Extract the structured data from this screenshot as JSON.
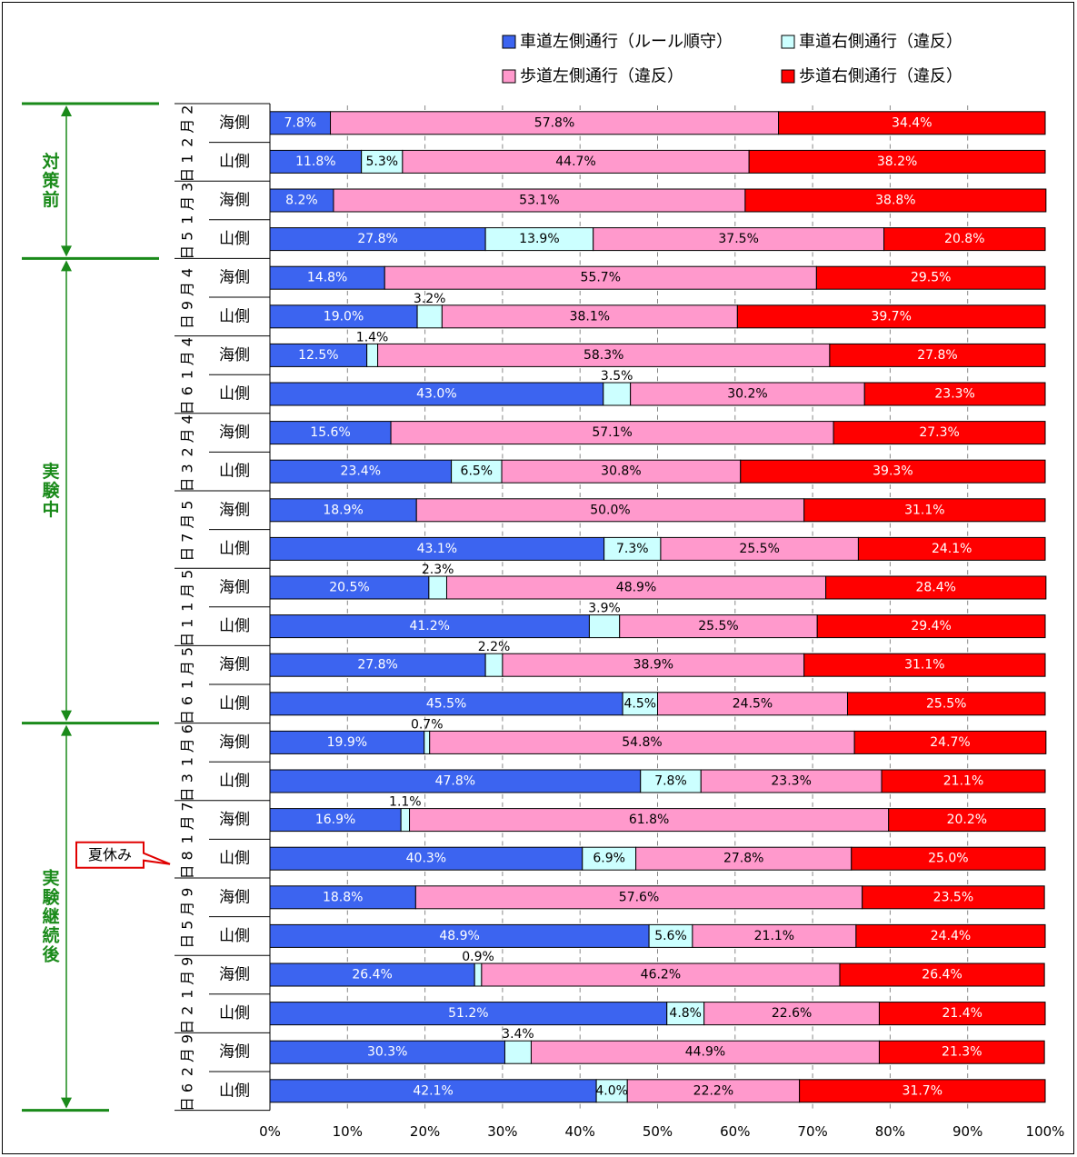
{
  "chart_data": {
    "type": "bar",
    "orientation": "horizontal",
    "stacked": true,
    "xlim": [
      0,
      100
    ],
    "x_ticks": [
      "0%",
      "10%",
      "20%",
      "30%",
      "40%",
      "50%",
      "60%",
      "70%",
      "80%",
      "90%",
      "100%"
    ],
    "grid": true,
    "legend_position": "top-right",
    "series": [
      {
        "name": "車道左側通行（ルール順守）",
        "color": "#3c64f0"
      },
      {
        "name": "車道右側通行（違反）",
        "color": "#ccffff"
      },
      {
        "name": "歩道左側通行（違反）",
        "color": "#ff99cc"
      },
      {
        "name": "歩道右側通行（違反）",
        "color": "#ff0000"
      }
    ],
    "dates": [
      "2月21日",
      "3月15日",
      "4月9日",
      "4月16日",
      "4月23日",
      "5月7日",
      "5月11日",
      "5月16日",
      "6月13日",
      "7月18日",
      "9月5日",
      "9月12日",
      "9月26日"
    ],
    "periods": [
      {
        "label": "対策前",
        "from_date": 0,
        "to_date": 1
      },
      {
        "label": "実験中",
        "from_date": 2,
        "to_date": 7
      },
      {
        "label": "実験継続後",
        "from_date": 8,
        "to_date": 12
      }
    ],
    "callout": {
      "text": "夏休み",
      "date_index": 9
    },
    "rows": [
      {
        "date": 0,
        "side": "海側",
        "values": [
          7.8,
          0,
          57.8,
          34.4
        ],
        "labels": [
          "7.8%",
          "",
          "57.8%",
          "34.4%"
        ]
      },
      {
        "date": 0,
        "side": "山側",
        "values": [
          11.8,
          5.3,
          44.7,
          38.2
        ],
        "labels": [
          "11.8%",
          "5.3%",
          "44.7%",
          "38.2%"
        ]
      },
      {
        "date": 1,
        "side": "海側",
        "values": [
          8.2,
          0,
          53.1,
          38.8
        ],
        "labels": [
          "8.2%",
          "",
          "53.1%",
          "38.8%"
        ]
      },
      {
        "date": 1,
        "side": "山側",
        "values": [
          27.8,
          13.9,
          37.5,
          20.8
        ],
        "labels": [
          "27.8%",
          "13.9%",
          "37.5%",
          "20.8%"
        ]
      },
      {
        "date": 2,
        "side": "海側",
        "values": [
          14.8,
          0,
          55.7,
          29.5
        ],
        "labels": [
          "14.8%",
          "",
          "55.7%",
          "29.5%"
        ]
      },
      {
        "date": 2,
        "side": "山側",
        "values": [
          19.0,
          3.2,
          38.1,
          39.7
        ],
        "labels": [
          "19.0%",
          "3.2%",
          "38.1%",
          "39.7%"
        ],
        "blue_above": true
      },
      {
        "date": 3,
        "side": "海側",
        "values": [
          12.5,
          1.4,
          58.3,
          27.8
        ],
        "labels": [
          "12.5%",
          "1.4%",
          "58.3%",
          "27.8%"
        ],
        "blue_above": true
      },
      {
        "date": 3,
        "side": "山側",
        "values": [
          43.0,
          3.5,
          30.2,
          23.3
        ],
        "labels": [
          "43.0%",
          "3.5%",
          "30.2%",
          "23.3%"
        ],
        "blue_above": true
      },
      {
        "date": 4,
        "side": "海側",
        "values": [
          15.6,
          0,
          57.1,
          27.3
        ],
        "labels": [
          "15.6%",
          "",
          "57.1%",
          "27.3%"
        ]
      },
      {
        "date": 4,
        "side": "山側",
        "values": [
          23.4,
          6.5,
          30.8,
          39.3
        ],
        "labels": [
          "23.4%",
          "6.5%",
          "30.8%",
          "39.3%"
        ]
      },
      {
        "date": 5,
        "side": "海側",
        "values": [
          18.9,
          0,
          50.0,
          31.1
        ],
        "labels": [
          "18.9%",
          "",
          "50.0%",
          "31.1%"
        ]
      },
      {
        "date": 5,
        "side": "山側",
        "values": [
          43.1,
          7.3,
          25.5,
          24.1
        ],
        "labels": [
          "43.1%",
          "7.3%",
          "25.5%",
          "24.1%"
        ]
      },
      {
        "date": 6,
        "side": "海側",
        "values": [
          20.5,
          2.3,
          48.9,
          28.4
        ],
        "labels": [
          "20.5%",
          "2.3%",
          "48.9%",
          "28.4%"
        ],
        "blue_above": true
      },
      {
        "date": 6,
        "side": "山側",
        "values": [
          41.2,
          3.9,
          25.5,
          29.4
        ],
        "labels": [
          "41.2%",
          "3.9%",
          "25.5%",
          "29.4%"
        ],
        "blue_above": true
      },
      {
        "date": 7,
        "side": "海側",
        "values": [
          27.8,
          2.2,
          38.9,
          31.1
        ],
        "labels": [
          "27.8%",
          "2.2%",
          "38.9%",
          "31.1%"
        ],
        "blue_above": true
      },
      {
        "date": 7,
        "side": "山側",
        "values": [
          45.5,
          4.5,
          24.5,
          25.5
        ],
        "labels": [
          "45.5%",
          "4.5%",
          "24.5%",
          "25.5%"
        ]
      },
      {
        "date": 8,
        "side": "海側",
        "values": [
          19.9,
          0.7,
          54.8,
          24.7
        ],
        "labels": [
          "19.9%",
          "0.7%",
          "54.8%",
          "24.7%"
        ],
        "blue_above": true
      },
      {
        "date": 8,
        "side": "山側",
        "values": [
          47.8,
          7.8,
          23.3,
          21.1
        ],
        "labels": [
          "47.8%",
          "7.8%",
          "23.3%",
          "21.1%"
        ]
      },
      {
        "date": 9,
        "side": "海側",
        "values": [
          16.9,
          1.1,
          61.8,
          20.2
        ],
        "labels": [
          "16.9%",
          "1.1%",
          "61.8%",
          "20.2%"
        ],
        "blue_above": true
      },
      {
        "date": 9,
        "side": "山側",
        "values": [
          40.3,
          6.9,
          27.8,
          25.0
        ],
        "labels": [
          "40.3%",
          "6.9%",
          "27.8%",
          "25.0%"
        ]
      },
      {
        "date": 10,
        "side": "海側",
        "values": [
          18.8,
          0,
          57.6,
          23.5
        ],
        "labels": [
          "18.8%",
          "",
          "57.6%",
          "23.5%"
        ]
      },
      {
        "date": 10,
        "side": "山側",
        "values": [
          48.9,
          5.6,
          21.1,
          24.4
        ],
        "labels": [
          "48.9%",
          "5.6%",
          "21.1%",
          "24.4%"
        ]
      },
      {
        "date": 11,
        "side": "海側",
        "values": [
          26.4,
          0.9,
          46.2,
          26.4
        ],
        "labels": [
          "26.4%",
          "0.9%",
          "46.2%",
          "26.4%"
        ],
        "blue_above": true
      },
      {
        "date": 11,
        "side": "山側",
        "values": [
          51.2,
          4.8,
          22.6,
          21.4
        ],
        "labels": [
          "51.2%",
          "4.8%",
          "22.6%",
          "21.4%"
        ]
      },
      {
        "date": 12,
        "side": "海側",
        "values": [
          30.3,
          3.4,
          44.9,
          21.3
        ],
        "labels": [
          "30.3%",
          "3.4%",
          "44.9%",
          "21.3%"
        ],
        "blue_above": true
      },
      {
        "date": 12,
        "side": "山側",
        "values": [
          42.1,
          4.0,
          22.2,
          31.7
        ],
        "labels": [
          "42.1%",
          "4.0%",
          "22.2%",
          "31.7%"
        ]
      }
    ]
  }
}
